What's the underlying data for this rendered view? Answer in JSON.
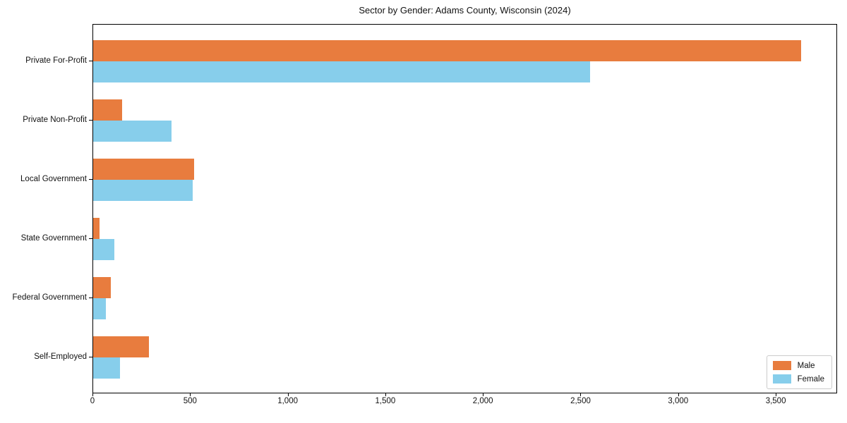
{
  "title": "Sector by Gender: Adams County, Wisconsin (2024)",
  "chart_data": {
    "type": "bar",
    "orientation": "horizontal",
    "title": "Sector by Gender: Adams County, Wisconsin (2024)",
    "categories": [
      "Private For-Profit",
      "Private Non-Profit",
      "Local Government",
      "State Government",
      "Federal Government",
      "Self-Employed"
    ],
    "series": [
      {
        "name": "Male",
        "color": "#e87c3e",
        "values": [
          3626,
          148,
          516,
          33,
          89,
          285
        ]
      },
      {
        "name": "Female",
        "color": "#87ceeb",
        "values": [
          2546,
          400,
          509,
          108,
          64,
          137
        ]
      }
    ],
    "xlabel": "",
    "ylabel": "",
    "xlim": [
      0,
      3807
    ],
    "xticks": [
      0,
      500,
      1000,
      1500,
      2000,
      2500,
      3000,
      3500
    ],
    "xtick_labels": [
      "0",
      "500",
      "1,000",
      "1,500",
      "2,000",
      "2,500",
      "3,000",
      "3,500"
    ],
    "grid": false,
    "legend": {
      "position": "lower right",
      "entries": [
        "Male",
        "Female"
      ]
    }
  }
}
